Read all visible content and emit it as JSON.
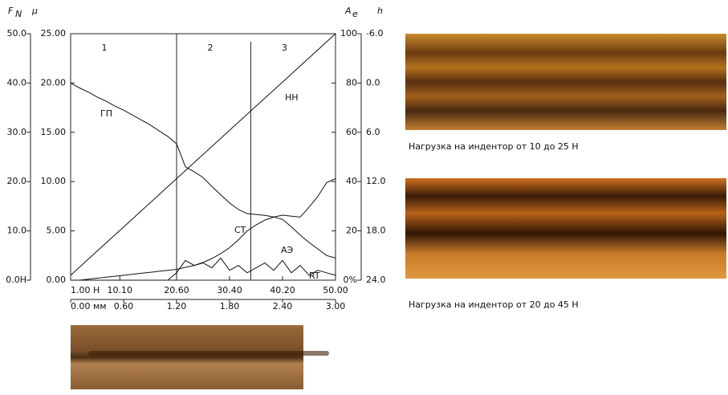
{
  "chart_data": {
    "type": "line",
    "x": [
      0,
      0.1,
      0.2,
      0.3,
      0.4,
      0.5,
      0.6,
      0.7,
      0.8,
      0.9,
      1.0,
      1.1,
      1.2,
      1.3,
      1.4,
      1.5,
      1.6,
      1.7,
      1.8,
      1.9,
      2.0,
      2.1,
      2.2,
      2.3,
      2.4,
      2.5,
      2.6,
      2.7,
      2.8,
      2.9,
      3.0
    ],
    "xlim": [
      0,
      3
    ],
    "xticks": [
      {
        "value": 0,
        "label": "0.00 мм"
      },
      {
        "value": 0.6,
        "label": "0.60"
      },
      {
        "value": 1.2,
        "label": "1.20"
      },
      {
        "value": 1.8,
        "label": "1.80"
      },
      {
        "value": 2.4,
        "label": "2.40"
      },
      {
        "value": 3,
        "label": "3.00"
      }
    ],
    "x2lim": [
      1,
      50
    ],
    "x2ticks": [
      {
        "value": 1,
        "label": "1.00 H"
      },
      {
        "value": 10.1,
        "label": "10.10"
      },
      {
        "value": 20.6,
        "label": "20.60"
      },
      {
        "value": 30.4,
        "label": "30.40"
      },
      {
        "value": 40.2,
        "label": "40.20"
      },
      {
        "value": 50,
        "label": "50.00"
      }
    ],
    "y_axes": [
      {
        "label": "F",
        "label_sub": "N",
        "lim": [
          0,
          50
        ],
        "ticks": [
          {
            "value": 0,
            "label": "0.0H"
          },
          {
            "value": 10,
            "label": "10.0"
          },
          {
            "value": 20,
            "label": "20.0"
          },
          {
            "value": 30,
            "label": "30.0"
          },
          {
            "value": 40,
            "label": "40.0"
          },
          {
            "value": 50,
            "label": "50.0"
          }
        ]
      },
      {
        "label": "μ",
        "lim": [
          0,
          25
        ],
        "ticks": [
          {
            "value": 0,
            "label": "0.00"
          },
          {
            "value": 5,
            "label": "5.00"
          },
          {
            "value": 10,
            "label": "10.00"
          },
          {
            "value": 15,
            "label": "15.00"
          },
          {
            "value": 20,
            "label": "20.00"
          },
          {
            "value": 25,
            "label": "25.00"
          }
        ]
      },
      {
        "label": "A",
        "label_sub": "e",
        "lim": [
          0,
          100
        ],
        "ticks": [
          {
            "value": 0,
            "label": "0%"
          },
          20,
          40,
          60,
          80,
          100
        ]
      },
      {
        "label": "h",
        "lim": [
          24,
          -6
        ],
        "ticks": [
          {
            "value": 24,
            "label": "24.0"
          },
          {
            "value": 18,
            "label": "18.0"
          },
          {
            "value": 12,
            "label": "12.0"
          },
          {
            "value": 6,
            "label": "6.0"
          },
          {
            "value": 0,
            "label": "0.0"
          },
          {
            "value": -6,
            "label": "-6.0"
          }
        ]
      }
    ],
    "series": [
      {
        "name": "НН",
        "axis": 0,
        "color": "#111111",
        "values": [
          1,
          2.63,
          4.27,
          5.9,
          7.53,
          9.17,
          10.8,
          12.43,
          14.07,
          15.7,
          17.33,
          18.97,
          20.6,
          22.23,
          23.87,
          25.5,
          27.13,
          28.77,
          30.4,
          32.03,
          33.67,
          35.3,
          36.93,
          38.57,
          40.2,
          41.83,
          43.47,
          45.1,
          46.73,
          48.37,
          50
        ]
      },
      {
        "name": "ГП",
        "axis": 3,
        "color": "#111111",
        "values": [
          0.0,
          0.6,
          1.1,
          1.7,
          2.2,
          2.8,
          3.3,
          3.9,
          4.5,
          5.1,
          5.8,
          6.5,
          7.4,
          10.2,
          10.8,
          11.5,
          12.6,
          13.6,
          14.6,
          15.4,
          15.9,
          16.0,
          16.1,
          16.3,
          16.6,
          17.5,
          18.5,
          19.4,
          20.2,
          21.0,
          21.3
        ]
      },
      {
        "name": "СТ",
        "axis": 1,
        "color": "#111111",
        "values": [
          0,
          0,
          0.1,
          0.2,
          0.3,
          0.4,
          0.5,
          0.6,
          0.7,
          0.8,
          0.9,
          1.0,
          1.1,
          1.3,
          1.5,
          1.8,
          2.2,
          2.7,
          3.3,
          4.1,
          5.0,
          5.6,
          6.1,
          6.4,
          6.6,
          6.5,
          6.4,
          7.4,
          8.5,
          9.9,
          10.3
        ]
      },
      {
        "name": "АЭ",
        "axis": 2,
        "color": "#111111",
        "values": [
          0,
          0,
          0,
          0,
          0,
          0,
          0,
          0,
          0,
          0,
          0,
          0,
          3,
          8,
          6,
          7,
          5,
          9,
          4,
          6,
          3,
          5,
          7,
          4,
          8,
          3,
          6,
          2,
          4,
          3,
          2
        ]
      }
    ],
    "zones": {
      "dividers": [
        1.2,
        2.04
      ],
      "labels": [
        "1",
        "2",
        "3"
      ]
    },
    "annotation": "RT"
  },
  "captions": [
    "Нагрузка на индентор от 10 до 25 Н",
    "Нагрузка на индентор от 20 до 45 Н"
  ]
}
